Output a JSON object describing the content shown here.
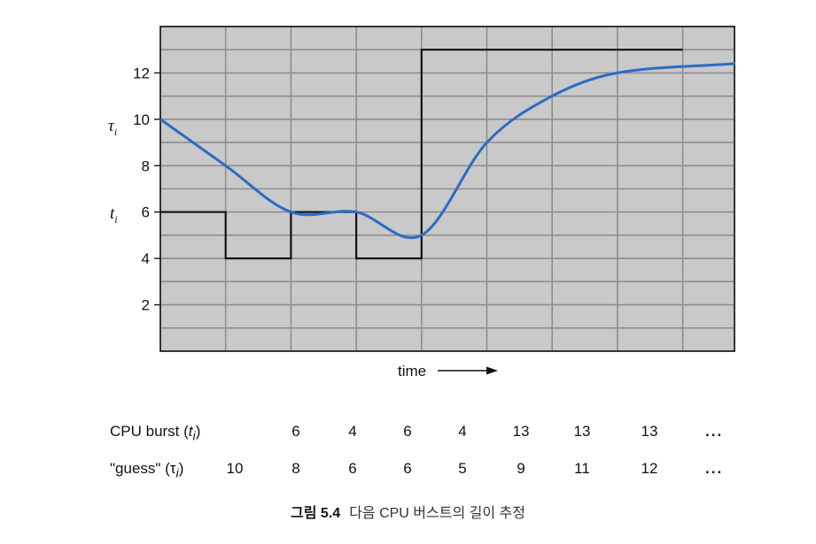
{
  "chart_data": {
    "type": "line",
    "ylim": [
      0,
      14
    ],
    "yticks": [
      2,
      4,
      6,
      8,
      10,
      12
    ],
    "xlim": [
      0,
      8.8
    ],
    "grid": true,
    "xlabel": "time",
    "ylabel_tau": "τ",
    "ylabel_t": "t",
    "ylabel_sub": "i",
    "series": [
      {
        "values": [
          6,
          4,
          6,
          4,
          13,
          13,
          13,
          13
        ],
        "color": "#111111",
        "style": "step"
      },
      {
        "values": [
          10,
          8,
          6,
          6,
          5,
          9,
          11,
          12,
          12.4
        ],
        "color": "#2a6cc4",
        "style": "smooth"
      }
    ]
  },
  "table": {
    "burst": {
      "label_prefix": "CPU burst (",
      "var": "t",
      "sub": "i",
      "suffix": ")",
      "values": [
        "6",
        "4",
        "6",
        "4",
        "13",
        "13",
        "13"
      ]
    },
    "guess": {
      "label_prefix": "\"guess\" (",
      "var": "τ",
      "sub": "i",
      "suffix": ")",
      "values": [
        "10",
        "8",
        "6",
        "6",
        "5",
        "9",
        "11",
        "12"
      ]
    },
    "dots": "..."
  },
  "caption": {
    "number": "그림 5.4",
    "text": "다음 CPU 버스트의 길이 추정"
  }
}
